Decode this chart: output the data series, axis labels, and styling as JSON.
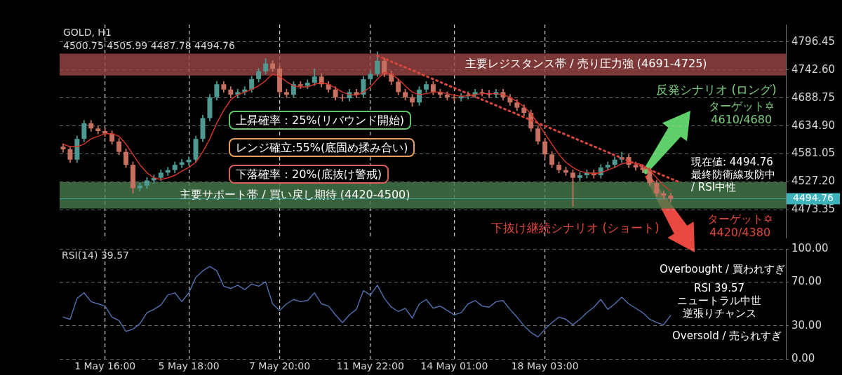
{
  "chart_data": [
    {
      "type": "candlestick",
      "ohlc": [
        [
          4595,
          4601,
          4584,
          4590
        ],
        [
          4590,
          4596,
          4564,
          4570
        ],
        [
          4570,
          4616,
          4564,
          4610
        ],
        [
          4610,
          4646,
          4604,
          4640
        ],
        [
          4640,
          4646,
          4624,
          4630
        ],
        [
          4630,
          4636,
          4619,
          4625
        ],
        [
          4625,
          4631,
          4614,
          4620
        ],
        [
          4620,
          4626,
          4599,
          4605
        ],
        [
          4605,
          4611,
          4579,
          4585
        ],
        [
          4585,
          4591,
          4554,
          4560
        ],
        [
          4560,
          4566,
          4505,
          4515
        ],
        [
          4515,
          4526,
          4509,
          4520
        ],
        [
          4520,
          4536,
          4514,
          4530
        ],
        [
          4530,
          4541,
          4524,
          4535
        ],
        [
          4535,
          4551,
          4529,
          4545
        ],
        [
          4545,
          4556,
          4539,
          4550
        ],
        [
          4550,
          4566,
          4544,
          4560
        ],
        [
          4560,
          4571,
          4554,
          4565
        ],
        [
          4565,
          4576,
          4559,
          4570
        ],
        [
          4570,
          4616,
          4564,
          4610
        ],
        [
          4610,
          4656,
          4604,
          4650
        ],
        [
          4650,
          4696,
          4644,
          4690
        ],
        [
          4690,
          4721,
          4684,
          4715
        ],
        [
          4715,
          4721,
          4699,
          4705
        ],
        [
          4705,
          4711,
          4689,
          4695
        ],
        [
          4695,
          4706,
          4689,
          4700
        ],
        [
          4700,
          4711,
          4694,
          4705
        ],
        [
          4705,
          4731,
          4699,
          4725
        ],
        [
          4725,
          4746,
          4719,
          4740
        ],
        [
          4740,
          4765,
          4734,
          4755
        ],
        [
          4755,
          4761,
          4739,
          4745
        ],
        [
          4745,
          4751,
          4694,
          4700
        ],
        [
          4700,
          4706,
          4689,
          4695
        ],
        [
          4695,
          4721,
          4689,
          4715
        ],
        [
          4715,
          4721,
          4706,
          4712
        ],
        [
          4712,
          4724,
          4706,
          4718
        ],
        [
          4718,
          4745,
          4712,
          4730
        ],
        [
          4730,
          4736,
          4709,
          4715
        ],
        [
          4715,
          4721,
          4699,
          4705
        ],
        [
          4705,
          4711,
          4684,
          4690
        ],
        [
          4690,
          4696,
          4682,
          4688
        ],
        [
          4688,
          4706,
          4682,
          4700
        ],
        [
          4700,
          4706,
          4689,
          4695
        ],
        [
          4695,
          4731,
          4689,
          4725
        ],
        [
          4725,
          4741,
          4719,
          4735
        ],
        [
          4735,
          4778,
          4729,
          4760
        ],
        [
          4760,
          4766,
          4729,
          4735
        ],
        [
          4735,
          4741,
          4714,
          4720
        ],
        [
          4720,
          4726,
          4694,
          4700
        ],
        [
          4700,
          4706,
          4684,
          4690
        ],
        [
          4690,
          4696,
          4672,
          4680
        ],
        [
          4680,
          4711,
          4674,
          4705
        ],
        [
          4705,
          4721,
          4699,
          4715
        ],
        [
          4715,
          4721,
          4694,
          4700
        ],
        [
          4700,
          4706,
          4689,
          4695
        ],
        [
          4695,
          4701,
          4684,
          4690
        ],
        [
          4690,
          4696,
          4682,
          4688
        ],
        [
          4688,
          4698,
          4682,
          4692
        ],
        [
          4692,
          4701,
          4686,
          4695
        ],
        [
          4695,
          4706,
          4689,
          4700
        ],
        [
          4700,
          4706,
          4692,
          4698
        ],
        [
          4698,
          4704,
          4689,
          4695
        ],
        [
          4695,
          4706,
          4689,
          4700
        ],
        [
          4700,
          4706,
          4684,
          4690
        ],
        [
          4690,
          4696,
          4674,
          4680
        ],
        [
          4680,
          4686,
          4664,
          4670
        ],
        [
          4670,
          4676,
          4654,
          4660
        ],
        [
          4660,
          4666,
          4624,
          4630
        ],
        [
          4630,
          4636,
          4599,
          4605
        ],
        [
          4605,
          4611,
          4574,
          4580
        ],
        [
          4580,
          4586,
          4554,
          4560
        ],
        [
          4560,
          4566,
          4544,
          4550
        ],
        [
          4550,
          4556,
          4539,
          4545
        ],
        [
          4545,
          4551,
          4480,
          4535
        ],
        [
          4535,
          4546,
          4529,
          4540
        ],
        [
          4540,
          4551,
          4534,
          4545
        ],
        [
          4545,
          4551,
          4534,
          4540
        ],
        [
          4540,
          4561,
          4534,
          4555
        ],
        [
          4555,
          4566,
          4549,
          4560
        ],
        [
          4560,
          4576,
          4554,
          4570
        ],
        [
          4570,
          4585,
          4564,
          4575
        ],
        [
          4575,
          4581,
          4554,
          4560
        ],
        [
          4560,
          4566,
          4549,
          4555
        ],
        [
          4555,
          4561,
          4544,
          4550
        ],
        [
          4550,
          4556,
          4519,
          4525
        ],
        [
          4525,
          4531,
          4499,
          4505
        ],
        [
          4505,
          4511,
          4494,
          4500.75
        ],
        [
          4500.75,
          4505.99,
          4487.78,
          4494.76
        ],
        null,
        null,
        null,
        null,
        null,
        null,
        null,
        null,
        null,
        null,
        null,
        null,
        null,
        null,
        null,
        null
      ],
      "colors": [
        "#c7705f",
        "#c7705f",
        "#4e9a92",
        "#4e9a92",
        "#c7705f",
        "#c7705f",
        "#c7705f",
        "#c7705f",
        "#c7705f",
        "#c7705f",
        "#c7705f",
        "#4e9a92",
        "#4e9a92",
        "#4e9a92",
        "#4e9a92",
        "#4e9a92",
        "#4e9a92",
        "#4e9a92",
        "#4e9a92",
        "#4e9a92",
        "#4e9a92",
        "#4e9a92",
        "#4e9a92",
        "#c7705f",
        "#c7705f",
        "#4e9a92",
        "#4e9a92",
        "#4e9a92",
        "#4e9a92",
        "#4e9a92",
        "#c7705f",
        "#c7705f",
        "#c7705f",
        "#4e9a92",
        "#c7705f",
        "#4e9a92",
        "#4e9a92",
        "#c7705f",
        "#c7705f",
        "#c7705f",
        "#c7705f",
        "#4e9a92",
        "#c7705f",
        "#4e9a92",
        "#4e9a92",
        "#4e9a92",
        "#c7705f",
        "#c7705f",
        "#c7705f",
        "#c7705f",
        "#c7705f",
        "#4e9a92",
        "#4e9a92",
        "#c7705f",
        "#c7705f",
        "#c7705f",
        "#c7705f",
        "#4e9a92",
        "#4e9a92",
        "#4e9a92",
        "#c7705f",
        "#c7705f",
        "#4e9a92",
        "#c7705f",
        "#c7705f",
        "#c7705f",
        "#c7705f",
        "#c7705f",
        "#c7705f",
        "#c7705f",
        "#c7705f",
        "#c7705f",
        "#c7705f",
        "#c7705f",
        "#4e9a92",
        "#4e9a92",
        "#c7705f",
        "#4e9a92",
        "#4e9a92",
        "#4e9a92",
        "#4e9a92",
        "#c7705f",
        "#c7705f",
        "#c7705f",
        "#c7705f",
        "#c7705f",
        "#c7705f",
        "#c7705f",
        null,
        null,
        null,
        null,
        null,
        null,
        null,
        null,
        null,
        null,
        null,
        null,
        null,
        null,
        null,
        null
      ],
      "series": [
        {
          "type": "line",
          "color": "#d8372c",
          "values": [
            4600,
            4595,
            4595,
            4600,
            4610,
            4615,
            4620,
            4620,
            4615,
            4600,
            4580,
            4560,
            4545,
            4535,
            4532,
            4535,
            4540,
            4548,
            4555,
            4565,
            4585,
            4610,
            4640,
            4665,
            4685,
            4695,
            4700,
            4705,
            4712,
            4722,
            4735,
            4730,
            4720,
            4712,
            4710,
            4710,
            4715,
            4718,
            4715,
            4708,
            4700,
            4695,
            4694,
            4700,
            4710,
            4725,
            4738,
            4735,
            4725,
            4712,
            4700,
            4695,
            4697,
            4700,
            4700,
            4697,
            4694,
            4692,
            4693,
            4695,
            4697,
            4697,
            4697,
            4695,
            4690,
            4682,
            4672,
            4658,
            4640,
            4620,
            4600,
            4580,
            4565,
            4555,
            4548,
            4545,
            4543,
            4545,
            4550,
            4555,
            4562,
            4565,
            4563,
            4560,
            4550,
            4535,
            4520,
            4510,
            null,
            null,
            null,
            null,
            null,
            null,
            null,
            null,
            null,
            null,
            null,
            null,
            null,
            null,
            null,
            null
          ]
        },
        {
          "type": "line",
          "color": "#d9463e",
          "line_style": "dotted",
          "values": [
            null,
            null,
            null,
            null,
            null,
            null,
            null,
            null,
            null,
            null,
            null,
            null,
            null,
            null,
            null,
            null,
            null,
            null,
            null,
            null,
            null,
            null,
            null,
            null,
            null,
            null,
            null,
            null,
            null,
            null,
            null,
            null,
            null,
            null,
            null,
            null,
            null,
            null,
            null,
            null,
            null,
            null,
            null,
            null,
            null,
            4770,
            null,
            null,
            null,
            null,
            null,
            null,
            null,
            null,
            null,
            null,
            null,
            null,
            null,
            null,
            null,
            null,
            null,
            null,
            null,
            null,
            null,
            null,
            null,
            null,
            null,
            null,
            null,
            null,
            null,
            null,
            null,
            null,
            null,
            null,
            null,
            null,
            null,
            null,
            null,
            null,
            null,
            null,
            4528,
            null,
            null,
            null,
            null,
            null,
            null,
            null,
            null,
            null,
            null,
            null,
            null,
            null,
            null,
            null
          ]
        }
      ],
      "ylim": [
        4420,
        4830
      ],
      "yticks": [
        4473.35,
        {
          "value": 4527.2,
          "label": "4527.20"
        },
        4581.05,
        {
          "value": 4634.9,
          "label": "4634.90"
        },
        4688.75,
        {
          "value": 4742.6,
          "label": "4742.60"
        },
        4796.45
      ],
      "grid": true,
      "tick_labels": "y",
      "bands": [
        {
          "axis": "y",
          "from": 4732,
          "to": 4774,
          "label": "主要レジスタンス帯 / 売り圧力強 (4691-4725)",
          "color": "#9b4643"
        },
        {
          "axis": "y",
          "from": 4476,
          "to": 4527,
          "label": "主要サポート帯 / 買い戻し期待 (4420-4500)",
          "color": "#467c4b"
        }
      ],
      "ref_lines": [
        {
          "axis": "y",
          "value": 4494.76,
          "label": "4494.76",
          "color": "#3fb3bb"
        }
      ],
      "annotations": [
        "GOLD, H1",
        "4500.75 4505.99 4487.78 4494.76",
        "上昇確率：25%(リバウンド開始)",
        "レンジ確立:55%(底固め揉み合い)",
        "下落確率：20%(底抜け警戒)",
        "反発シナリオ (ロング)",
        "ターゲット✡\n4610/4680",
        "現在値: 4494.76",
        "最終防衛線攻防中",
        "/ RSI中性",
        "下抜け継続シナリオ (ショート)",
        "ターゲット✡\n4420/4380"
      ]
    },
    {
      "type": "line",
      "categories": [
        null,
        null,
        null,
        null,
        null,
        null,
        "1 May 16:00",
        null,
        null,
        null,
        null,
        null,
        null,
        null,
        null,
        null,
        null,
        null,
        "5 May 18:00",
        null,
        null,
        null,
        null,
        null,
        null,
        null,
        null,
        null,
        null,
        null,
        null,
        "7 May 20:00",
        null,
        null,
        null,
        null,
        null,
        null,
        null,
        null,
        null,
        null,
        null,
        null,
        "11 May 22:00",
        null,
        null,
        null,
        null,
        null,
        null,
        null,
        null,
        null,
        null,
        null,
        "14 May 01:00",
        null,
        null,
        null,
        null,
        null,
        null,
        null,
        null,
        null,
        null,
        null,
        null,
        "18 May 03:00",
        null,
        null,
        null,
        null,
        null,
        null,
        null,
        null,
        null,
        null,
        null,
        null,
        null,
        null,
        null,
        null,
        null,
        null,
        null,
        null,
        null,
        null,
        null,
        null,
        null,
        null,
        null,
        null,
        null,
        null,
        null,
        null,
        null,
        null
      ],
      "series": [
        {
          "color": "#5470b0",
          "values": [
            38,
            36,
            55,
            60,
            52,
            50,
            48,
            38,
            35,
            25,
            27,
            32,
            42,
            45,
            49,
            58,
            60,
            52,
            60,
            74,
            80,
            84,
            80,
            66,
            64,
            67,
            63,
            68,
            66,
            70,
            50,
            44,
            50,
            54,
            52,
            53,
            60,
            50,
            48,
            40,
            33,
            40,
            45,
            62,
            58,
            67,
            55,
            47,
            43,
            46,
            37,
            50,
            54,
            46,
            48,
            44,
            40,
            42,
            50,
            53,
            48,
            47,
            52,
            53,
            45,
            38,
            30,
            24,
            20,
            27,
            33,
            38,
            36,
            31,
            36,
            42,
            47,
            54,
            45,
            50,
            56,
            50,
            46,
            42,
            36,
            33,
            31,
            39.57,
            null,
            null,
            null,
            null,
            null,
            null,
            null,
            null,
            null,
            null,
            null,
            null,
            null,
            null,
            null,
            null
          ]
        }
      ],
      "ylim": [
        0,
        100
      ],
      "yticks": [
        {
          "value": 0,
          "label": "0.00"
        },
        {
          "value": 30,
          "label": "30.00"
        },
        {
          "value": 70,
          "label": "70.00"
        },
        {
          "value": 100,
          "label": "100.00"
        }
      ],
      "grid": true,
      "annotations": [
        "RSI(14) 39.57",
        "Overbought / 買われすぎ",
        "RSI 39.57",
        "ニュートラル中世",
        "逆張りチャンス",
        "Oversold / 売られすぎ"
      ]
    }
  ]
}
